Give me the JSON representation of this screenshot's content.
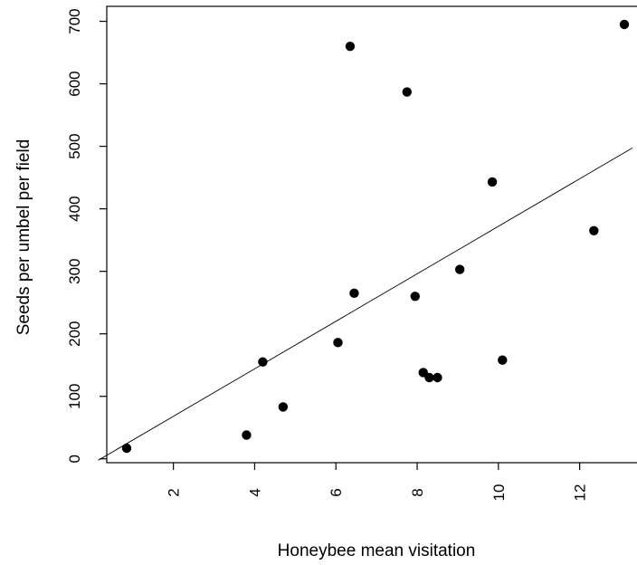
{
  "chart_data": {
    "type": "scatter",
    "title": "",
    "xlabel": "Honeybee mean visitation",
    "ylabel": "Seeds per umbel per field",
    "xlim": [
      0.15,
      13.3
    ],
    "ylim": [
      -8,
      715
    ],
    "x_ticks": [
      2,
      4,
      6,
      8,
      10,
      12
    ],
    "y_ticks": [
      0,
      100,
      200,
      300,
      400,
      500,
      600,
      700
    ],
    "grid": false,
    "legend": "none",
    "point_color": "#000000",
    "regression_line": {
      "intercept": -8,
      "slope": 38
    },
    "points": [
      {
        "x": 0.85,
        "y": 17
      },
      {
        "x": 3.8,
        "y": 38
      },
      {
        "x": 4.2,
        "y": 155
      },
      {
        "x": 4.7,
        "y": 83
      },
      {
        "x": 6.05,
        "y": 186
      },
      {
        "x": 6.35,
        "y": 660
      },
      {
        "x": 6.45,
        "y": 265
      },
      {
        "x": 7.75,
        "y": 587
      },
      {
        "x": 7.95,
        "y": 260
      },
      {
        "x": 8.15,
        "y": 138
      },
      {
        "x": 8.3,
        "y": 130
      },
      {
        "x": 8.5,
        "y": 130
      },
      {
        "x": 9.05,
        "y": 303
      },
      {
        "x": 9.85,
        "y": 443
      },
      {
        "x": 10.1,
        "y": 158
      },
      {
        "x": 12.35,
        "y": 365
      },
      {
        "x": 13.1,
        "y": 695
      }
    ]
  }
}
